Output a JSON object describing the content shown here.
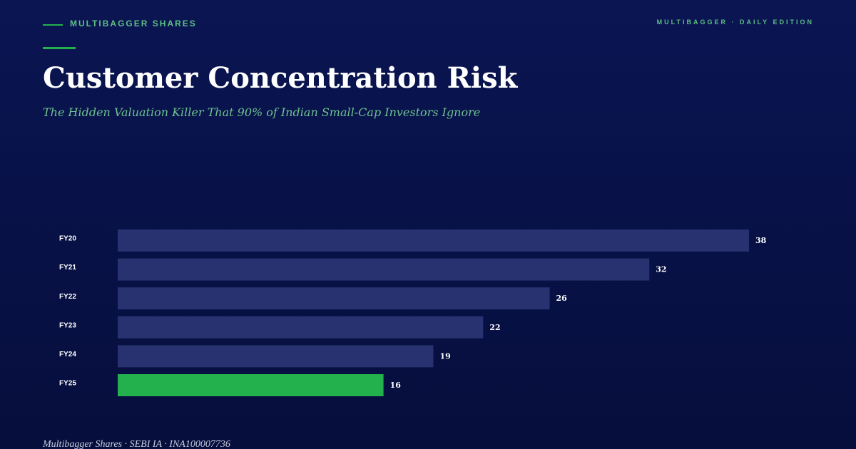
{
  "header": {
    "brand": "MULTIBAGGER SHARES",
    "edition": "MULTIBAGGER · DAILY EDITION"
  },
  "chart_data": {
    "type": "bar",
    "orientation": "horizontal",
    "title": "Customer Concentration Risk",
    "subtitle": "The Hidden Valuation Killer That 90% of Indian Small-Cap Investors Ignore",
    "categories": [
      "FY20",
      "FY21",
      "FY22",
      "FY23",
      "FY24",
      "FY25"
    ],
    "values": [
      38,
      32,
      26,
      22,
      19,
      16
    ],
    "colors": [
      "#283270",
      "#283270",
      "#283270",
      "#283270",
      "#283270",
      "#22b14c"
    ]
  },
  "footer": {
    "text": "Multibagger Shares · SEBI IA · INA100007736"
  }
}
